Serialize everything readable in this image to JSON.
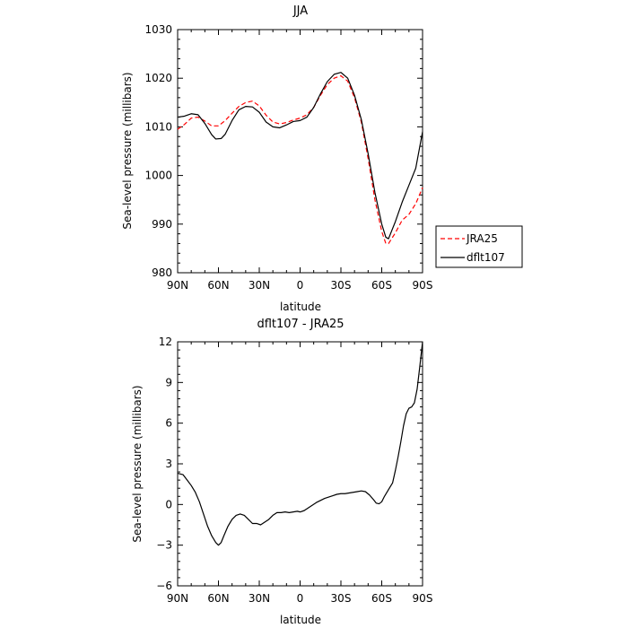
{
  "chart_data": [
    {
      "id": "top",
      "type": "line",
      "title": "JJA",
      "xlabel": "latitude",
      "ylabel": "Sea-level pressure (millibars)",
      "xlim": [
        90,
        -90
      ],
      "ylim": [
        980,
        1030
      ],
      "x_tick_labels": [
        "90N",
        "60N",
        "30N",
        "0",
        "30S",
        "60S",
        "90S"
      ],
      "x_ticks": [
        90,
        60,
        30,
        0,
        -30,
        -60,
        -90
      ],
      "y_ticks": [
        980,
        990,
        1000,
        1010,
        1020,
        1030
      ],
      "legend": {
        "placement": "right"
      },
      "series": [
        {
          "name": "JRA25",
          "color": "#ff0000",
          "dash": true,
          "x": [
            90,
            85,
            80,
            75,
            70,
            65,
            60,
            55,
            50,
            45,
            40,
            35,
            30,
            25,
            20,
            15,
            10,
            5,
            0,
            -5,
            -10,
            -15,
            -20,
            -25,
            -30,
            -35,
            -40,
            -45,
            -50,
            -55,
            -60,
            -63,
            -65,
            -70,
            -75,
            -80,
            -85,
            -90
          ],
          "y": [
            1009.5,
            1010.5,
            1011.8,
            1012.0,
            1011.2,
            1010.2,
            1010.2,
            1011.3,
            1012.8,
            1014.2,
            1015.0,
            1015.3,
            1014.3,
            1012.4,
            1011.0,
            1010.6,
            1010.9,
            1011.4,
            1011.8,
            1012.5,
            1014.0,
            1016.5,
            1018.7,
            1020.0,
            1020.5,
            1019.4,
            1016.0,
            1011.0,
            1003.5,
            995.0,
            988.5,
            986.0,
            986.0,
            988.2,
            990.8,
            992.0,
            994.2,
            997.5
          ]
        },
        {
          "name": "dflt107",
          "color": "#000000",
          "dash": false,
          "x": [
            90,
            85,
            80,
            75,
            70,
            65,
            62,
            58,
            55,
            50,
            45,
            40,
            35,
            30,
            25,
            20,
            15,
            10,
            5,
            0,
            -5,
            -10,
            -15,
            -20,
            -25,
            -30,
            -35,
            -40,
            -45,
            -50,
            -55,
            -60,
            -63,
            -65,
            -70,
            -75,
            -80,
            -85,
            -90
          ],
          "y": [
            1012.0,
            1012.2,
            1012.7,
            1012.5,
            1010.7,
            1008.4,
            1007.5,
            1007.6,
            1008.5,
            1011.3,
            1013.5,
            1014.2,
            1014.1,
            1013.0,
            1011.0,
            1010.0,
            1009.8,
            1010.4,
            1011.1,
            1011.3,
            1012.0,
            1014.0,
            1016.8,
            1019.3,
            1020.8,
            1021.2,
            1020.0,
            1016.5,
            1011.5,
            1004.5,
            996.5,
            990.0,
            987.3,
            987.0,
            990.5,
            994.5,
            998.0,
            1001.5,
            1009.0
          ]
        }
      ]
    },
    {
      "id": "bottom",
      "type": "line",
      "title": "dflt107 - JRA25",
      "xlabel": "latitude",
      "ylabel": "Sea-level pressure (millibars)",
      "xlim": [
        90,
        -90
      ],
      "ylim": [
        -6,
        12
      ],
      "x_tick_labels": [
        "90N",
        "60N",
        "30N",
        "0",
        "30S",
        "60S",
        "90S"
      ],
      "x_ticks": [
        90,
        60,
        30,
        0,
        -30,
        -60,
        -90
      ],
      "y_ticks": [
        -6,
        -3,
        0,
        3,
        6,
        9,
        12
      ],
      "series": [
        {
          "name": "",
          "color": "#000000",
          "dash": false,
          "x": [
            90,
            86,
            83,
            80,
            77,
            74,
            71,
            68,
            65,
            62,
            60,
            58,
            56,
            53,
            50,
            47,
            44,
            41,
            38,
            35,
            32,
            29,
            26,
            23,
            20,
            17,
            14,
            11,
            8,
            5,
            2,
            0,
            -3,
            -6,
            -9,
            -12,
            -15,
            -18,
            -21,
            -24,
            -27,
            -30,
            -33,
            -36,
            -39,
            -42,
            -45,
            -48,
            -51,
            -54,
            -56,
            -58,
            -60,
            -62,
            -65,
            -68,
            -70,
            -72,
            -74,
            -76,
            -78,
            -80,
            -82,
            -84,
            -86,
            -88,
            -90
          ],
          "y": [
            2.3,
            2.2,
            1.8,
            1.4,
            0.9,
            0.2,
            -0.7,
            -1.6,
            -2.3,
            -2.8,
            -3.0,
            -2.8,
            -2.3,
            -1.6,
            -1.1,
            -0.8,
            -0.7,
            -0.8,
            -1.1,
            -1.4,
            -1.4,
            -1.5,
            -1.3,
            -1.1,
            -0.8,
            -0.6,
            -0.6,
            -0.55,
            -0.6,
            -0.55,
            -0.5,
            -0.55,
            -0.45,
            -0.25,
            -0.05,
            0.15,
            0.3,
            0.45,
            0.55,
            0.65,
            0.75,
            0.8,
            0.8,
            0.85,
            0.9,
            0.95,
            1.0,
            0.95,
            0.7,
            0.35,
            0.1,
            0.05,
            0.2,
            0.6,
            1.1,
            1.6,
            2.5,
            3.5,
            4.6,
            5.8,
            6.7,
            7.1,
            7.2,
            7.5,
            8.5,
            10.2,
            12.0
          ]
        }
      ]
    }
  ]
}
